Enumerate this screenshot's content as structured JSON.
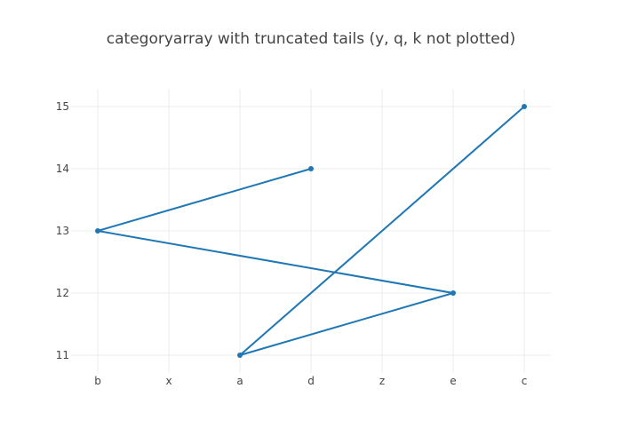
{
  "chart_data": {
    "type": "line",
    "title": "categoryarray with truncated tails (y, q, k not plotted)",
    "xlabel": "",
    "ylabel": "",
    "categories": [
      "b",
      "x",
      "a",
      "d",
      "z",
      "e",
      "c"
    ],
    "ylim": [
      10.8,
      15.3
    ],
    "y_ticks": [
      11,
      12,
      13,
      14,
      15
    ],
    "grid": true,
    "series": [
      {
        "x": [
          "d",
          "b",
          "e",
          "a",
          "c"
        ],
        "y": [
          14,
          13,
          12,
          11,
          15
        ],
        "color": "#1f77b4",
        "mode": "lines+markers"
      }
    ]
  }
}
